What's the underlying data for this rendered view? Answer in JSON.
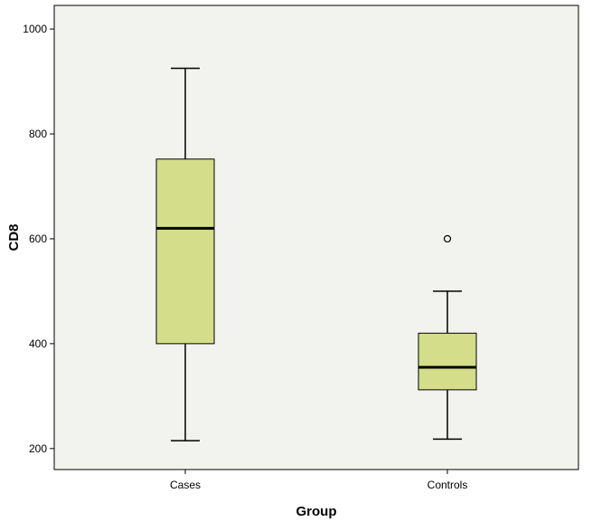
{
  "chart_data": {
    "type": "boxplot",
    "title": "",
    "xlabel": "Group",
    "ylabel": "CD8",
    "categories": [
      "Cases",
      "Controls"
    ],
    "ylim": [
      160,
      1045
    ],
    "yticks": [
      200,
      400,
      600,
      800,
      1000
    ],
    "grid": false,
    "legend": "none",
    "boxes": [
      {
        "category": "Cases",
        "min": 215,
        "q1": 400,
        "median": 620,
        "q3": 752,
        "max": 925,
        "outliers": []
      },
      {
        "category": "Controls",
        "min": 218,
        "q1": 312,
        "median": 355,
        "q3": 420,
        "max": 500,
        "outliers": [
          600
        ]
      }
    ],
    "colors": {
      "plot_background": "#f2f2ee",
      "box_fill": "#d4de8a",
      "line": "#000000"
    }
  }
}
